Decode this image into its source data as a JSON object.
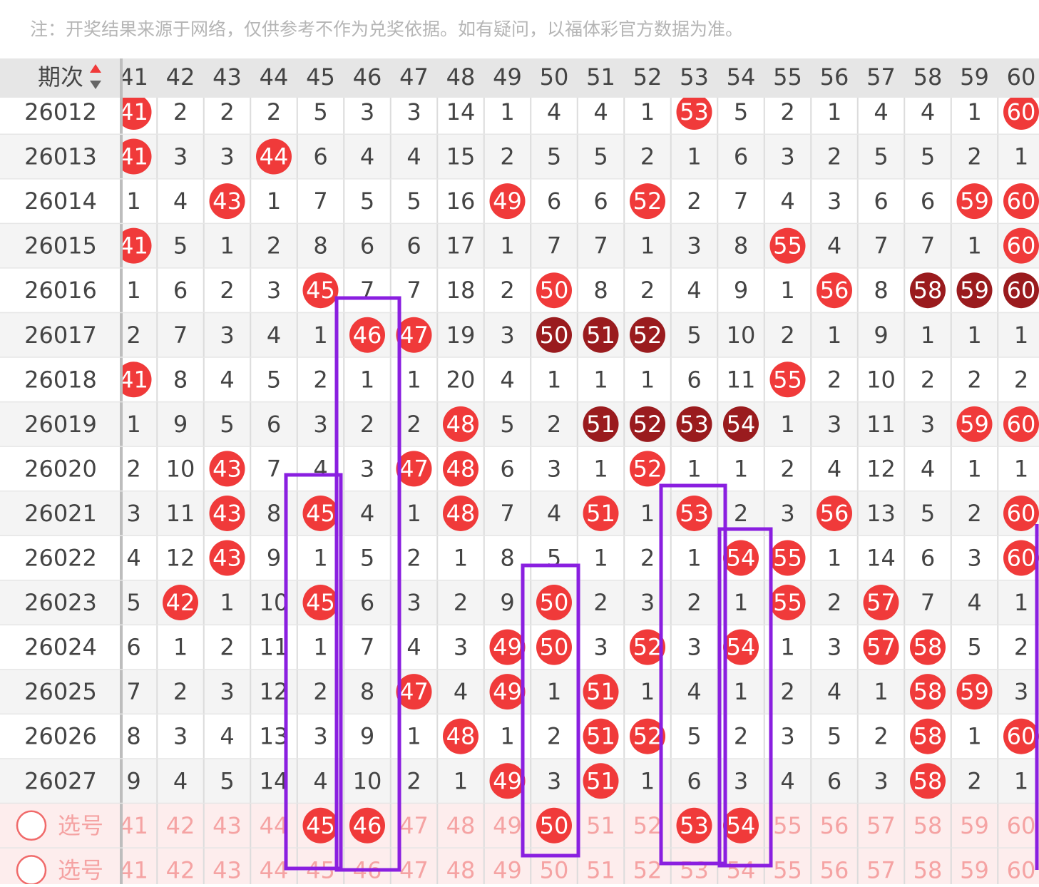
{
  "note": "注：开奖结果来源于网络，仅供参考不作为兑奖依据。如有疑问，以福体彩官方数据为准。",
  "header": {
    "label": "期次",
    "columns": [
      41,
      42,
      43,
      44,
      45,
      46,
      47,
      48,
      49,
      50,
      51,
      52,
      53,
      54,
      55,
      56,
      57,
      58,
      59,
      60
    ]
  },
  "rows": [
    {
      "period": "26012",
      "cells": [
        41,
        2,
        2,
        2,
        5,
        3,
        3,
        14,
        1,
        4,
        4,
        1,
        53,
        5,
        2,
        1,
        4,
        4,
        1,
        60
      ]
    },
    {
      "period": "26013",
      "cells": [
        41,
        3,
        3,
        44,
        6,
        4,
        4,
        15,
        2,
        5,
        5,
        2,
        1,
        6,
        3,
        2,
        5,
        5,
        2,
        1
      ]
    },
    {
      "period": "26014",
      "cells": [
        1,
        4,
        43,
        1,
        7,
        5,
        5,
        16,
        49,
        6,
        6,
        52,
        2,
        7,
        4,
        3,
        6,
        6,
        59,
        60
      ]
    },
    {
      "period": "26015",
      "cells": [
        41,
        5,
        1,
        2,
        8,
        6,
        6,
        17,
        1,
        7,
        7,
        1,
        3,
        8,
        55,
        4,
        7,
        7,
        1,
        60
      ]
    },
    {
      "period": "26016",
      "cells": [
        1,
        6,
        2,
        3,
        45,
        7,
        7,
        18,
        2,
        50,
        8,
        2,
        4,
        9,
        1,
        56,
        8,
        58,
        59,
        60
      ]
    },
    {
      "period": "26017",
      "cells": [
        2,
        7,
        3,
        4,
        1,
        46,
        47,
        19,
        3,
        50,
        51,
        52,
        5,
        10,
        2,
        1,
        9,
        1,
        1,
        1
      ]
    },
    {
      "period": "26018",
      "cells": [
        41,
        8,
        4,
        5,
        2,
        1,
        1,
        20,
        4,
        1,
        1,
        1,
        6,
        11,
        55,
        2,
        10,
        2,
        2,
        2
      ]
    },
    {
      "period": "26019",
      "cells": [
        1,
        9,
        5,
        6,
        3,
        2,
        2,
        48,
        5,
        2,
        51,
        52,
        53,
        54,
        1,
        3,
        11,
        3,
        59,
        60
      ]
    },
    {
      "period": "26020",
      "cells": [
        2,
        10,
        43,
        7,
        4,
        3,
        47,
        48,
        6,
        3,
        1,
        52,
        1,
        1,
        2,
        4,
        12,
        4,
        1,
        1
      ]
    },
    {
      "period": "26021",
      "cells": [
        3,
        11,
        43,
        8,
        45,
        4,
        1,
        48,
        7,
        4,
        51,
        1,
        53,
        2,
        3,
        56,
        13,
        5,
        2,
        60
      ]
    },
    {
      "period": "26022",
      "cells": [
        4,
        12,
        43,
        9,
        1,
        5,
        2,
        1,
        8,
        5,
        1,
        2,
        1,
        54,
        55,
        1,
        14,
        6,
        3,
        60
      ]
    },
    {
      "period": "26023",
      "cells": [
        5,
        42,
        1,
        10,
        45,
        6,
        3,
        2,
        9,
        50,
        2,
        3,
        2,
        1,
        55,
        2,
        57,
        7,
        4,
        1
      ]
    },
    {
      "period": "26024",
      "cells": [
        6,
        1,
        2,
        11,
        1,
        7,
        4,
        3,
        49,
        50,
        3,
        52,
        3,
        54,
        1,
        3,
        57,
        58,
        5,
        2
      ]
    },
    {
      "period": "26025",
      "cells": [
        7,
        2,
        3,
        12,
        2,
        8,
        47,
        4,
        49,
        1,
        51,
        1,
        4,
        1,
        2,
        4,
        1,
        58,
        59,
        3
      ]
    },
    {
      "period": "26026",
      "cells": [
        8,
        3,
        4,
        13,
        3,
        9,
        1,
        48,
        1,
        2,
        51,
        52,
        5,
        2,
        3,
        5,
        2,
        58,
        1,
        60
      ]
    },
    {
      "period": "26027",
      "cells": [
        9,
        4,
        5,
        14,
        4,
        10,
        2,
        1,
        49,
        3,
        51,
        1,
        6,
        3,
        4,
        6,
        3,
        58,
        2,
        1
      ]
    }
  ],
  "select_rows": [
    {
      "label": "选号",
      "numbers": [
        41,
        42,
        43,
        44,
        45,
        46,
        47,
        48,
        49,
        50,
        51,
        52,
        53,
        54,
        55,
        56,
        57,
        58,
        59,
        60
      ],
      "selected": [
        45,
        46,
        50,
        53,
        54
      ]
    },
    {
      "label": "选号",
      "numbers": [
        41,
        42,
        43,
        44,
        45,
        46,
        47,
        48,
        49,
        50,
        51,
        52,
        53,
        54,
        55,
        56,
        57,
        58,
        59,
        60
      ]
    }
  ]
}
